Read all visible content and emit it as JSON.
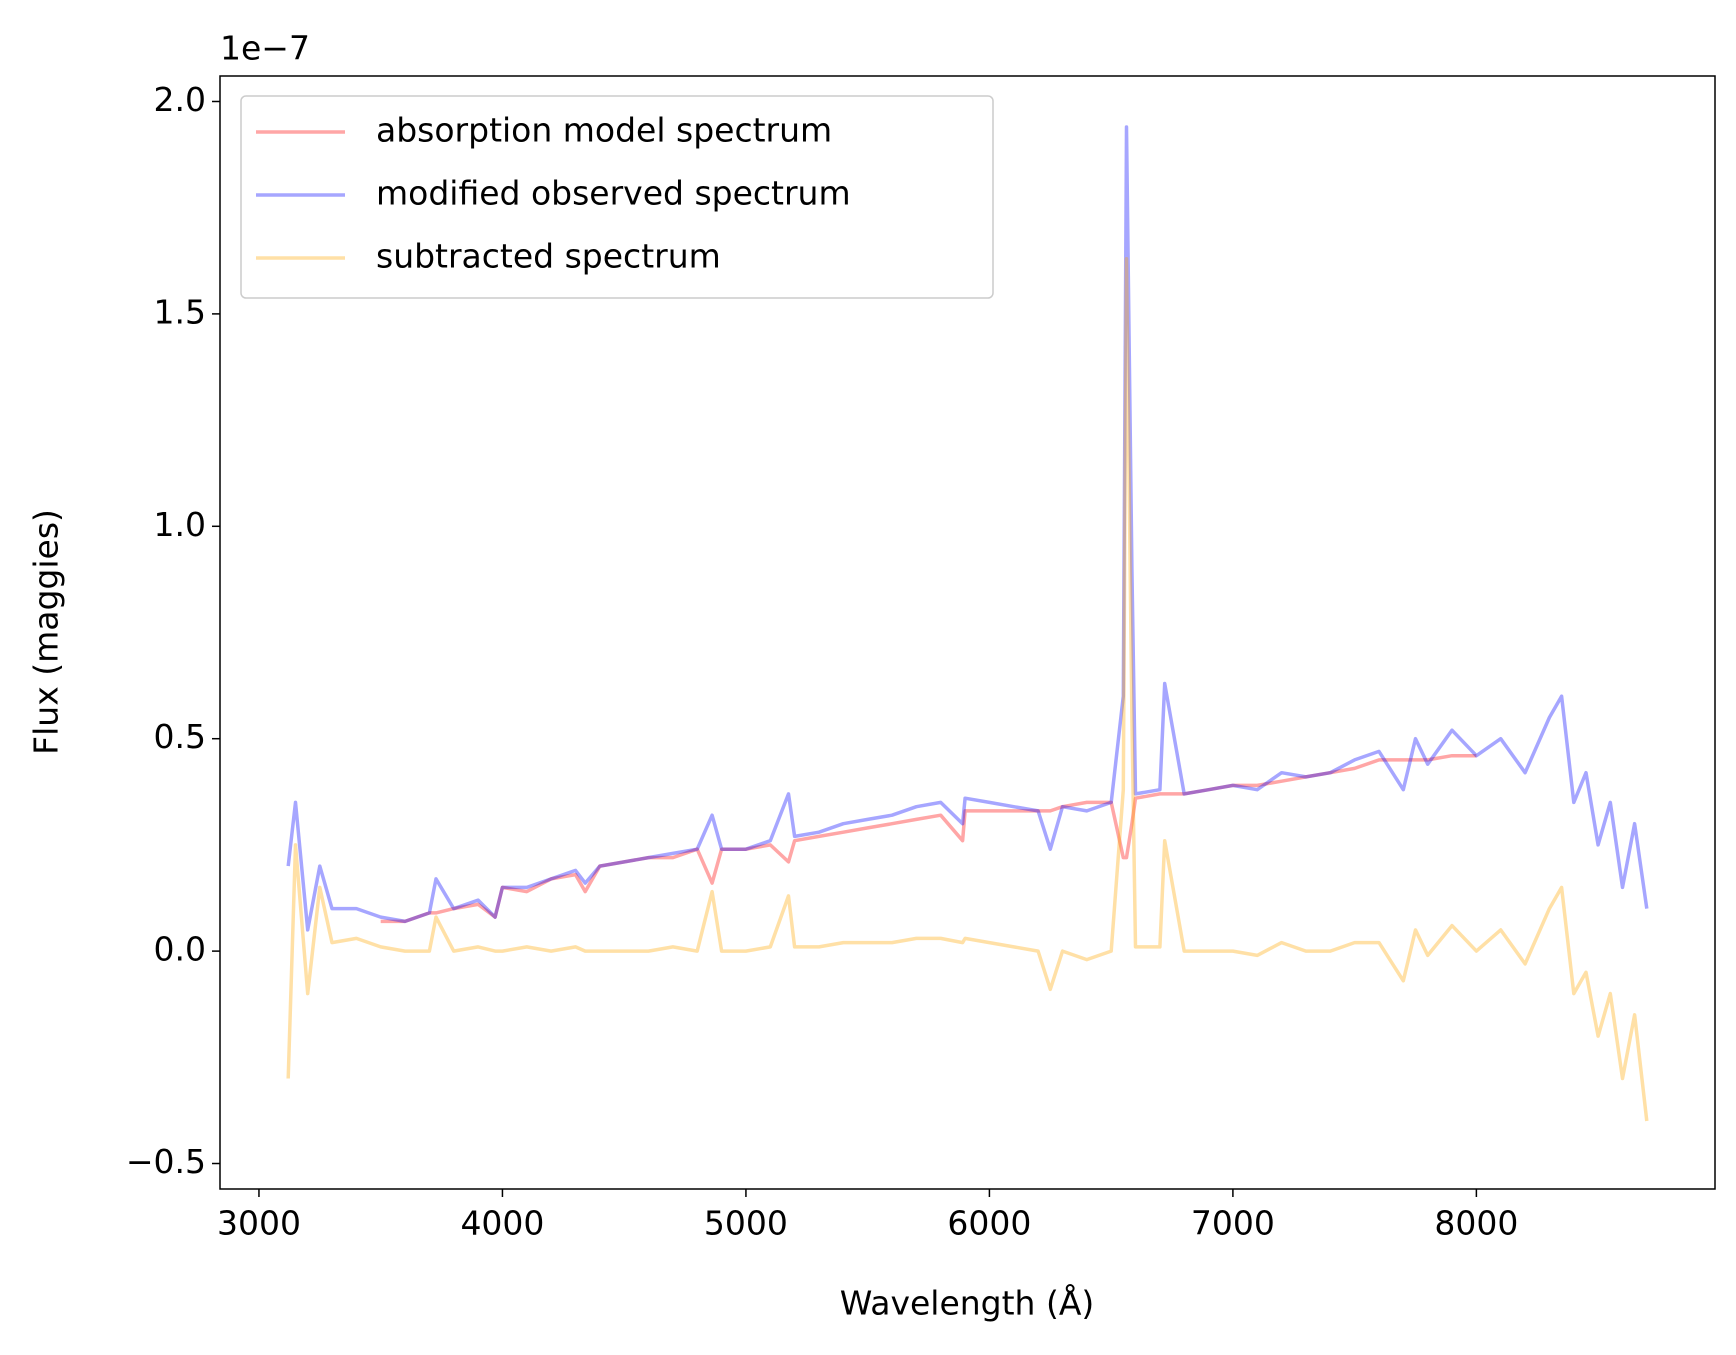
{
  "chart_data": {
    "type": "line",
    "y_offset_label": "1e−7",
    "xlabel": "Wavelength (Å)",
    "ylabel": "Flux (maggies)",
    "x": [
      3120,
      3150,
      3200,
      3250,
      3300,
      3400,
      3500,
      3600,
      3700,
      3727,
      3800,
      3900,
      3970,
      4000,
      4100,
      4200,
      4300,
      4340,
      4400,
      4500,
      4600,
      4700,
      4800,
      4861,
      4900,
      5000,
      5100,
      5175,
      5200,
      5300,
      5400,
      5500,
      5600,
      5700,
      5800,
      5890,
      5900,
      6000,
      6100,
      6200,
      6250,
      6300,
      6400,
      6500,
      6550,
      6563,
      6585,
      6600,
      6700,
      6720,
      6800,
      6900,
      7000,
      7100,
      7200,
      7300,
      7400,
      7500,
      7600,
      7700,
      7750,
      7800,
      7900,
      8000,
      8100,
      8200,
      8300,
      8350,
      8400,
      8450,
      8500,
      8550,
      8600,
      8650,
      8700
    ],
    "series": [
      {
        "name": "absorption model spectrum",
        "color": "#ff0000",
        "values": [
          null,
          null,
          null,
          null,
          null,
          null,
          0.07,
          0.07,
          0.09,
          0.09,
          0.1,
          0.11,
          0.08,
          0.15,
          0.14,
          0.17,
          0.18,
          0.14,
          0.2,
          0.21,
          0.22,
          0.22,
          0.24,
          0.16,
          0.24,
          0.24,
          0.25,
          0.21,
          0.26,
          0.27,
          0.28,
          0.29,
          0.3,
          0.31,
          0.32,
          0.26,
          0.33,
          0.33,
          0.33,
          0.33,
          0.33,
          0.34,
          0.35,
          0.35,
          0.22,
          0.22,
          0.3,
          0.36,
          0.37,
          0.37,
          0.37,
          0.38,
          0.39,
          0.39,
          0.4,
          0.41,
          0.42,
          0.43,
          0.45,
          0.45,
          0.45,
          0.45,
          0.46,
          0.46,
          null,
          null,
          null,
          null,
          null,
          null,
          null,
          null,
          null,
          null,
          null
        ]
      },
      {
        "name": "modified observed spectrum",
        "color": "#0000ff",
        "values": [
          0.2,
          0.35,
          0.05,
          0.2,
          0.1,
          0.1,
          0.08,
          0.07,
          0.09,
          0.17,
          0.1,
          0.12,
          0.08,
          0.15,
          0.15,
          0.17,
          0.19,
          0.16,
          0.2,
          0.21,
          0.22,
          0.23,
          0.24,
          0.32,
          0.24,
          0.24,
          0.26,
          0.37,
          0.27,
          0.28,
          0.3,
          0.31,
          0.32,
          0.34,
          0.35,
          0.3,
          0.36,
          0.35,
          0.34,
          0.33,
          0.24,
          0.34,
          0.33,
          0.35,
          0.6,
          1.94,
          0.9,
          0.37,
          0.38,
          0.63,
          0.37,
          0.38,
          0.39,
          0.38,
          0.42,
          0.41,
          0.42,
          0.45,
          0.47,
          0.38,
          0.5,
          0.44,
          0.52,
          0.46,
          0.5,
          0.42,
          0.55,
          0.6,
          0.35,
          0.42,
          0.25,
          0.35,
          0.15,
          0.3,
          0.1
        ]
      },
      {
        "name": "subtracted spectrum",
        "color": "#ffa500",
        "values": [
          -0.3,
          0.25,
          -0.1,
          0.15,
          0.02,
          0.03,
          0.01,
          0.0,
          0.0,
          0.08,
          0.0,
          0.01,
          0.0,
          0.0,
          0.01,
          0.0,
          0.01,
          0.0,
          0.0,
          0.0,
          0.0,
          0.01,
          0.0,
          0.14,
          0.0,
          0.0,
          0.01,
          0.13,
          0.01,
          0.01,
          0.02,
          0.02,
          0.02,
          0.03,
          0.03,
          0.02,
          0.03,
          0.02,
          0.01,
          0.0,
          -0.09,
          0.0,
          -0.02,
          0.0,
          0.38,
          1.63,
          0.55,
          0.01,
          0.01,
          0.26,
          0.0,
          0.0,
          0.0,
          -0.01,
          0.02,
          0.0,
          0.0,
          0.02,
          0.02,
          -0.07,
          0.05,
          -0.01,
          0.06,
          0.0,
          0.05,
          -0.03,
          0.1,
          0.15,
          -0.1,
          -0.05,
          -0.2,
          -0.1,
          -0.3,
          -0.15,
          -0.4
        ]
      }
    ],
    "alpha": 0.35,
    "xlim": [
      2840,
      8980
    ],
    "ylim": [
      -0.56,
      2.06
    ],
    "xticks": [
      3000,
      4000,
      5000,
      6000,
      7000,
      8000
    ],
    "yticks": [
      {
        "value": -0.5,
        "label": "−0.5"
      },
      {
        "value": 0,
        "label": "0.0"
      },
      0.5,
      {
        "value": 1,
        "label": "1.0"
      },
      1.5,
      {
        "value": 2,
        "label": "2.0"
      }
    ],
    "grid": false,
    "legend": "upper left"
  }
}
